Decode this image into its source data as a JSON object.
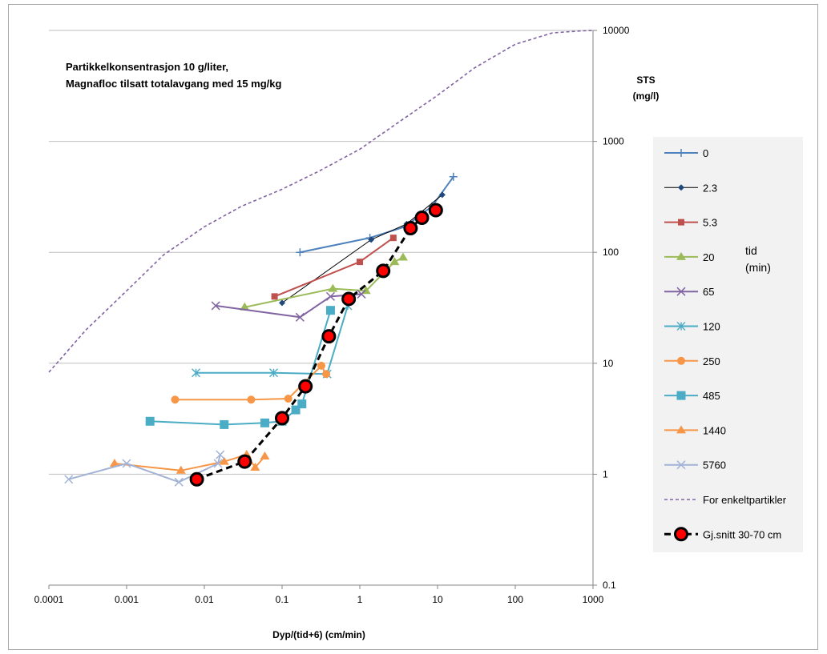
{
  "chart_data": {
    "type": "scatter",
    "xscale": "log",
    "yscale": "log",
    "xlim": [
      0.0001,
      1000
    ],
    "ylim": [
      0.1,
      10000
    ],
    "x_ticks": [
      "0.0001",
      "0.001",
      "0.01",
      "0.1",
      "1",
      "10",
      "100",
      "1000"
    ],
    "y_ticks": [
      "0.1",
      "1",
      "10",
      "100",
      "1000",
      "10000"
    ],
    "xlabel": "Dyp/(tid+6) (cm/min)",
    "ylabel": "STS\n(mg/l)",
    "annotation": [
      "Partikkelkonsentrasjon 10 g/liter,",
      "Magnafloc tilsatt totalavgang med 15 mg/kg"
    ],
    "legend_title": "tid\n(min)",
    "legend_position": "right",
    "grid": "horizontal",
    "series": [
      {
        "name": "0",
        "color": "#4f81bd",
        "marker": "plus",
        "x": [
          0.17,
          1.35,
          3.8,
          8.5,
          16
        ],
        "y": [
          100,
          135,
          170,
          260,
          480
        ]
      },
      {
        "name": "2.3",
        "color": "#1f497d",
        "marker": "diamond",
        "line_color": "#000000",
        "x": [
          0.1,
          1.4,
          4.0,
          11.5
        ],
        "y": [
          35,
          130,
          180,
          330
        ]
      },
      {
        "name": "5.3",
        "color": "#c0504d",
        "marker": "square",
        "x": [
          0.08,
          1.0,
          2.7
        ],
        "y": [
          40,
          82,
          135
        ]
      },
      {
        "name": "20",
        "color": "#9bbb59",
        "marker": "triangle",
        "x": [
          0.033,
          0.45,
          1.2,
          2.8,
          3.6
        ],
        "y": [
          32,
          47,
          45,
          82,
          90
        ]
      },
      {
        "name": "65",
        "color": "#8064a2",
        "marker": "x",
        "x": [
          0.014,
          0.17,
          0.42,
          1.05
        ],
        "y": [
          33,
          26,
          40,
          42
        ]
      },
      {
        "name": "120",
        "color": "#4bacc6",
        "marker": "asterisk",
        "x": [
          0.0078,
          0.078,
          0.38,
          0.7
        ],
        "y": [
          8.2,
          8.2,
          8.0,
          33
        ]
      },
      {
        "name": "250",
        "color": "#f79646",
        "marker": "circle",
        "x": [
          0.0042,
          0.04,
          0.12,
          0.32,
          0.37
        ],
        "y": [
          4.7,
          4.7,
          4.8,
          9.5,
          8.0
        ]
      },
      {
        "name": "485",
        "color": "#4bacc6",
        "marker": "square-lg",
        "x": [
          0.002,
          0.018,
          0.06,
          0.1,
          0.15,
          0.18,
          0.42
        ],
        "y": [
          3.0,
          2.8,
          2.9,
          3.0,
          3.8,
          4.3,
          30
        ]
      },
      {
        "name": "1440",
        "color": "#f79646",
        "marker": "triangle",
        "x": [
          0.0007,
          0.005,
          0.018,
          0.035,
          0.045,
          0.06
        ],
        "y": [
          1.25,
          1.08,
          1.3,
          1.5,
          1.15,
          1.45
        ]
      },
      {
        "name": "5760",
        "color": "#a3b3d6",
        "marker": "x",
        "x": [
          0.00018,
          0.001,
          0.0047,
          0.015,
          0.016
        ],
        "y": [
          0.9,
          1.25,
          0.85,
          1.25,
          1.5
        ]
      },
      {
        "name": "For enkeltpartikler",
        "color": "#8064a2",
        "marker": "none",
        "dash": "dashed",
        "x": [
          0.0001,
          0.0003,
          0.001,
          0.003,
          0.01,
          0.03,
          0.1,
          0.3,
          1,
          3,
          10,
          30,
          100,
          300,
          700,
          1000
        ],
        "y": [
          8.3,
          20,
          45,
          95,
          170,
          260,
          370,
          540,
          850,
          1450,
          2600,
          4600,
          7500,
          9500,
          9900,
          10000
        ]
      },
      {
        "name": "Gj.snitt 30-70 cm",
        "color": "#000000",
        "marker": "big-circle",
        "dash": "bold-dashed",
        "x": [
          0.008,
          0.033,
          0.1,
          0.2,
          0.4,
          0.72,
          2.0,
          4.5,
          6.3,
          9.5
        ],
        "y": [
          0.9,
          1.3,
          3.2,
          6.2,
          17.5,
          38,
          68,
          165,
          205,
          240
        ]
      }
    ]
  }
}
